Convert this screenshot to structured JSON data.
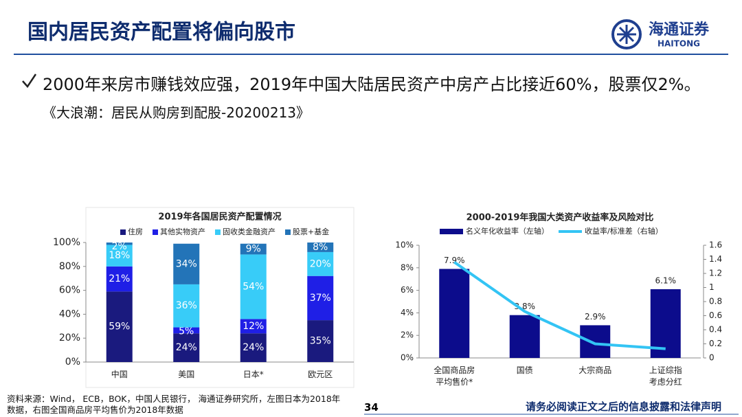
{
  "header": {
    "title": "国内居民资产配置将偏向股市",
    "logo_cn": "海通证券",
    "logo_en": "HAITONG"
  },
  "bullet": {
    "text": "2000年来房市赚钱效应强，2019年中国大陆居民资产中房产占比接近60%，股票仅2%。",
    "citation": "《大浪潮：居民从购房到配股-20200213》"
  },
  "chart_data": [
    {
      "type": "bar",
      "stacked": true,
      "title": "2019年各国居民资产配置情况",
      "categories": [
        "中国",
        "美国",
        "日本*",
        "欧元区"
      ],
      "series": [
        {
          "name": "住房",
          "color": "#1a1a7e",
          "values": [
            59,
            24,
            24,
            35
          ],
          "value_labels": [
            "59%",
            "24%",
            "24%",
            "35%"
          ]
        },
        {
          "name": "其他实物资产",
          "color": "#1f1fe6",
          "values": [
            21,
            5,
            12,
            37
          ],
          "value_labels": [
            "21%",
            "5%",
            "12%",
            "37%"
          ]
        },
        {
          "name": "固收类金融资产",
          "color": "#38ccf8",
          "values": [
            18,
            36,
            54,
            20
          ],
          "value_labels": [
            "18%",
            "36%",
            "54%",
            "20%"
          ]
        },
        {
          "name": "股票+基金",
          "color": "#2374b8",
          "values": [
            2,
            34,
            9,
            8
          ],
          "value_labels": [
            "2%",
            "34%",
            "9%",
            "8%"
          ]
        }
      ],
      "ylim": [
        0,
        100
      ],
      "yticks": [
        {
          "value": 0,
          "label": "0%"
        },
        {
          "value": 20,
          "label": "20%"
        },
        {
          "value": 40,
          "label": "40%"
        },
        {
          "value": 60,
          "label": "60%"
        },
        {
          "value": 80,
          "label": "80%"
        },
        {
          "value": 100,
          "label": "100%"
        }
      ]
    },
    {
      "type": "bar",
      "title": "2000-2019年我国大类资产收益率及风险对比",
      "categories": [
        "全国商品房\n平均售价*",
        "国债",
        "大宗商品",
        "上证综指\n考虑分红"
      ],
      "series": [
        {
          "name": "名义年化收益率（左轴）",
          "color": "#0c0c8c",
          "values": [
            7.9,
            3.8,
            2.9,
            6.1
          ],
          "value_labels": [
            "7.9%",
            "3.8%",
            "2.9%",
            "6.1%"
          ]
        },
        {
          "name": "收益率/标准差（右轴）",
          "color": "#33c4f4",
          "type": "line",
          "axis": "y2",
          "values": [
            1.36,
            0.66,
            0.2,
            0.13
          ]
        }
      ],
      "ylim": [
        0,
        10
      ],
      "yticks": [
        {
          "value": 0,
          "label": "0%"
        },
        {
          "value": 2,
          "label": "2%"
        },
        {
          "value": 4,
          "label": "4%"
        },
        {
          "value": 6,
          "label": "6%"
        },
        {
          "value": 8,
          "label": "8%"
        },
        {
          "value": 10,
          "label": "10%"
        }
      ],
      "y2lim": [
        0,
        1.6
      ],
      "y2ticks": [
        0,
        0.2,
        0.4,
        0.6,
        0.8,
        1,
        1.2,
        1.4,
        1.6
      ]
    }
  ],
  "footer": {
    "source": "资料来源：Wind， ECB，BOK，中国人民银行， 海通证券研究所，左图日本为2018年\n数据，右图全国商品房平均售价为2018年数据",
    "page": "34",
    "disclaimer": "请务必阅读正文之后的信息披露和法律声明"
  }
}
